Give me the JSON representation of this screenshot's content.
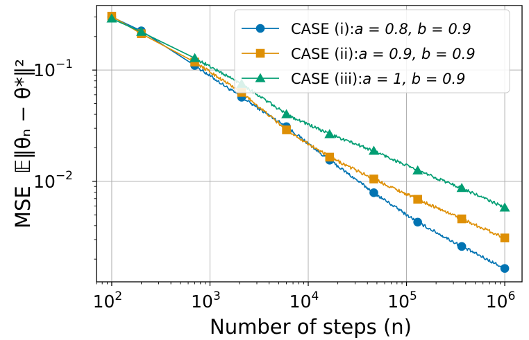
{
  "chart_data": {
    "type": "line",
    "scale": {
      "x": "log",
      "y": "log"
    },
    "xlim": [
      70,
      1500000
    ],
    "ylim": [
      0.00125,
      0.38
    ],
    "grid": true,
    "legend_position": "top-right",
    "xlabel": "Number of steps (n)",
    "ylabel_text": "MSE",
    "ylabel_math": "𝔼‖θₙ − θ*‖²",
    "x_ticks": [
      {
        "value": 100,
        "base": "10",
        "exp": "2"
      },
      {
        "value": 1000,
        "base": "10",
        "exp": "3"
      },
      {
        "value": 10000,
        "base": "10",
        "exp": "4"
      },
      {
        "value": 100000,
        "base": "10",
        "exp": "5"
      },
      {
        "value": 1000000,
        "base": "10",
        "exp": "6"
      }
    ],
    "y_ticks": [
      {
        "value": 0.01,
        "base": "10",
        "exp": "−2"
      },
      {
        "value": 0.1,
        "base": "10",
        "exp": "−1"
      }
    ],
    "series": [
      {
        "name": "CASE (i): a = 0.8, b = 0.9",
        "legend_case": "CASE (i):",
        "legend_params": "a = 0.8, b = 0.9",
        "color": "#0173b2",
        "marker": "circle",
        "x": [
          100,
          200,
          700,
          2100,
          6000,
          16500,
          46500,
          130000,
          365000,
          1000000
        ],
        "y": [
          0.3,
          0.225,
          0.11,
          0.057,
          0.031,
          0.0155,
          0.0079,
          0.0043,
          0.0026,
          0.00165
        ]
      },
      {
        "name": "CASE (ii): a = 0.9, b = 0.9",
        "legend_case": "CASE (ii):",
        "legend_params": "a = 0.9, b = 0.9",
        "color": "#de8f05",
        "marker": "square",
        "x": [
          100,
          200,
          700,
          2100,
          6000,
          16500,
          46500,
          130000,
          365000,
          1000000
        ],
        "y": [
          0.305,
          0.212,
          0.118,
          0.063,
          0.029,
          0.0165,
          0.0105,
          0.0069,
          0.0046,
          0.0031
        ]
      },
      {
        "name": "CASE (iii): a = 1, b = 0.9",
        "legend_case": "CASE (iii):",
        "legend_params": "a = 1, b = 0.9",
        "color": "#029e73",
        "marker": "triangle",
        "x": [
          100,
          200,
          700,
          2100,
          6000,
          16500,
          46500,
          130000,
          365000,
          1000000
        ],
        "y": [
          0.29,
          0.22,
          0.128,
          0.075,
          0.04,
          0.0265,
          0.0188,
          0.0125,
          0.0087,
          0.0058
        ]
      }
    ]
  }
}
